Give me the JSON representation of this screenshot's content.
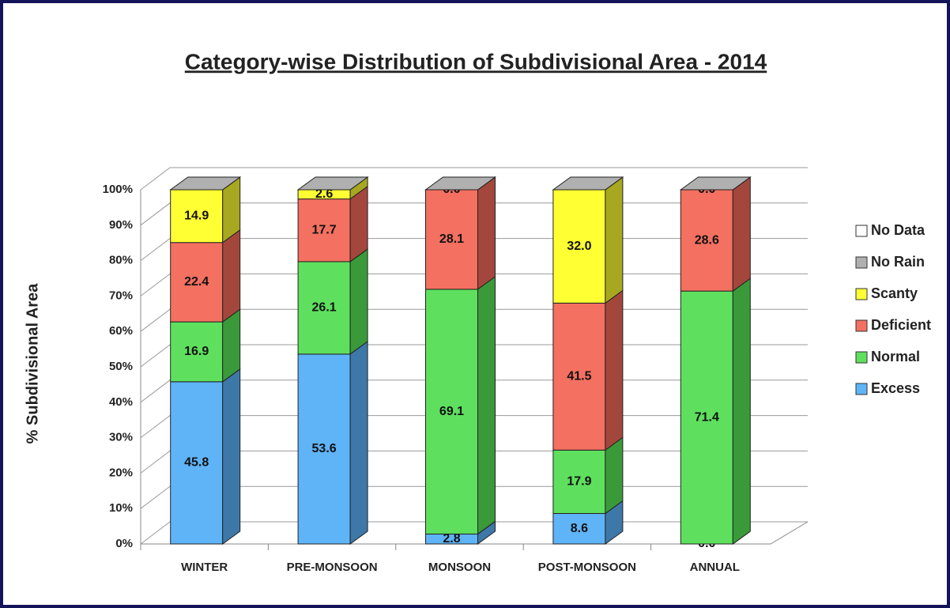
{
  "chart_data": {
    "type": "stacked_bar_3d",
    "title": "Category-wise Distribution of Subdivisional Area - 2014",
    "y_label": "% Subdivisional Area",
    "categories": [
      "WINTER",
      "PRE-MONSOON",
      "MONSOON",
      "POST-MONSOON",
      "ANNUAL"
    ],
    "series": [
      {
        "name": "Excess",
        "color": "#5fb4f7",
        "side_color": "#3d78a8",
        "values": [
          45.8,
          53.6,
          2.8,
          8.6,
          0
        ],
        "value_labels": [
          "45.8",
          "53.6",
          "2.8",
          "8.6",
          "0.0"
        ]
      },
      {
        "name": "Normal",
        "color": "#5ee05e",
        "side_color": "#3a9a3a",
        "values": [
          16.9,
          26.1,
          69.1,
          17.9,
          71.4
        ],
        "value_labels": [
          "16.9",
          "26.1",
          "69.1",
          "17.9",
          "71.4"
        ]
      },
      {
        "name": "Deficient",
        "color": "#f47060",
        "side_color": "#a3473d",
        "values": [
          22.4,
          17.7,
          28.1,
          41.5,
          28.6
        ],
        "value_labels": [
          "22.4",
          "17.7",
          "28.1",
          "41.5",
          "28.6"
        ]
      },
      {
        "name": "Scanty",
        "color": "#ffff33",
        "side_color": "#a8a820",
        "values": [
          14.9,
          2.6,
          0,
          32,
          0
        ],
        "value_labels": [
          "14.9",
          "2.6",
          "0.0",
          "32.0",
          "0.0"
        ]
      },
      {
        "name": "No Rain",
        "color": "#b0b0b0",
        "side_color": "#808080",
        "values": [
          0,
          0,
          0,
          0,
          0
        ],
        "value_labels": [
          null,
          null,
          null,
          null,
          null
        ]
      },
      {
        "name": "No Data",
        "color": "#ffffff",
        "side_color": "#cccccc",
        "values": [
          0,
          0,
          0,
          0,
          0
        ],
        "value_labels": [
          null,
          null,
          null,
          null,
          null
        ]
      }
    ],
    "ylim": [
      0,
      100
    ],
    "yticks": [
      {
        "value": 0,
        "label": "0%"
      },
      {
        "value": 10,
        "label": "10%"
      },
      {
        "value": 20,
        "label": "20%"
      },
      {
        "value": 30,
        "label": "30%"
      },
      {
        "value": 40,
        "label": "40%"
      },
      {
        "value": 50,
        "label": "50%"
      },
      {
        "value": 60,
        "label": "60%"
      },
      {
        "value": 70,
        "label": "70%"
      },
      {
        "value": 80,
        "label": "80%"
      },
      {
        "value": 90,
        "label": "90%"
      },
      {
        "value": 100,
        "label": "100%"
      }
    ],
    "grid": true,
    "legend": "right"
  }
}
